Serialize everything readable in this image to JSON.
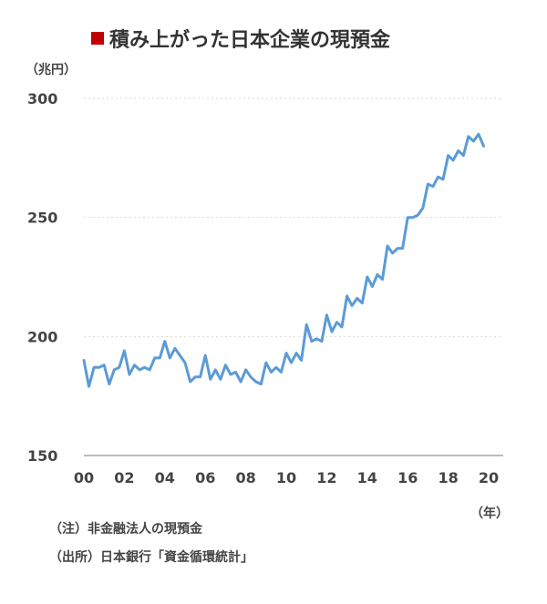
{
  "title": "積み上がった日本企業の現預金",
  "colors": {
    "marker": "#c00000",
    "line": "#5b9bd5",
    "grid": "#d9d9d9",
    "axis": "#a6a6a6"
  },
  "y_unit": "（兆円）",
  "x_unit": "（年）",
  "notes": [
    "（注）非金融法人の現預金",
    "（出所）日本銀行「資金循環統計」"
  ],
  "chart_data": {
    "type": "line",
    "title": "積み上がった日本企業の現預金",
    "ylabel": "（兆円）",
    "xlabel": "（年）",
    "xlim": [
      2000,
      2020
    ],
    "ylim": [
      150,
      300
    ],
    "x_ticks": [
      {
        "value": 2000,
        "label": "00"
      },
      {
        "value": 2002,
        "label": "02"
      },
      {
        "value": 2004,
        "label": "04"
      },
      {
        "value": 2006,
        "label": "06"
      },
      {
        "value": 2008,
        "label": "08"
      },
      {
        "value": 2010,
        "label": "10"
      },
      {
        "value": 2012,
        "label": "12"
      },
      {
        "value": 2014,
        "label": "14"
      },
      {
        "value": 2016,
        "label": "16"
      },
      {
        "value": 2018,
        "label": "18"
      },
      {
        "value": 2020,
        "label": "20"
      }
    ],
    "y_ticks": [
      150,
      200,
      250,
      300
    ],
    "grid": true,
    "series": [
      {
        "x": [
          2000.0,
          2000.25,
          2000.5,
          2000.75,
          2001.0,
          2001.25,
          2001.5,
          2001.75,
          2002.0,
          2002.25,
          2002.5,
          2002.75,
          2003.0,
          2003.25,
          2003.5,
          2003.75,
          2004.0,
          2004.25,
          2004.5,
          2004.75,
          2005.0,
          2005.25,
          2005.5,
          2005.75,
          2006.0,
          2006.25,
          2006.5,
          2006.75,
          2007.0,
          2007.25,
          2007.5,
          2007.75,
          2008.0,
          2008.25,
          2008.5,
          2008.75,
          2009.0,
          2009.25,
          2009.5,
          2009.75,
          2010.0,
          2010.25,
          2010.5,
          2010.75,
          2011.0,
          2011.25,
          2011.5,
          2011.75,
          2012.0,
          2012.25,
          2012.5,
          2012.75,
          2013.0,
          2013.25,
          2013.5,
          2013.75,
          2014.0,
          2014.25,
          2014.5,
          2014.75,
          2015.0,
          2015.25,
          2015.5,
          2015.75,
          2016.0,
          2016.25,
          2016.5,
          2016.75,
          2017.0,
          2017.25,
          2017.5,
          2017.75,
          2018.0,
          2018.25,
          2018.5,
          2018.75,
          2019.0,
          2019.25,
          2019.5,
          2019.75
        ],
        "values": [
          190,
          179,
          187,
          187,
          188,
          180,
          186,
          187,
          194,
          184,
          188,
          186,
          187,
          186,
          191,
          191,
          198,
          191,
          195,
          192,
          189,
          181,
          183,
          183,
          192,
          182,
          186,
          182,
          188,
          184,
          185,
          181,
          186,
          183,
          181,
          180,
          189,
          185,
          187,
          185,
          193,
          189,
          193,
          190,
          205,
          198,
          199,
          198,
          209,
          202,
          206,
          204,
          217,
          213,
          216,
          214,
          225,
          221,
          226,
          224,
          238,
          235,
          237,
          237,
          250,
          250,
          251,
          254,
          264,
          263,
          267,
          266,
          276,
          274,
          278,
          276,
          284,
          282,
          285,
          280
        ]
      }
    ]
  }
}
